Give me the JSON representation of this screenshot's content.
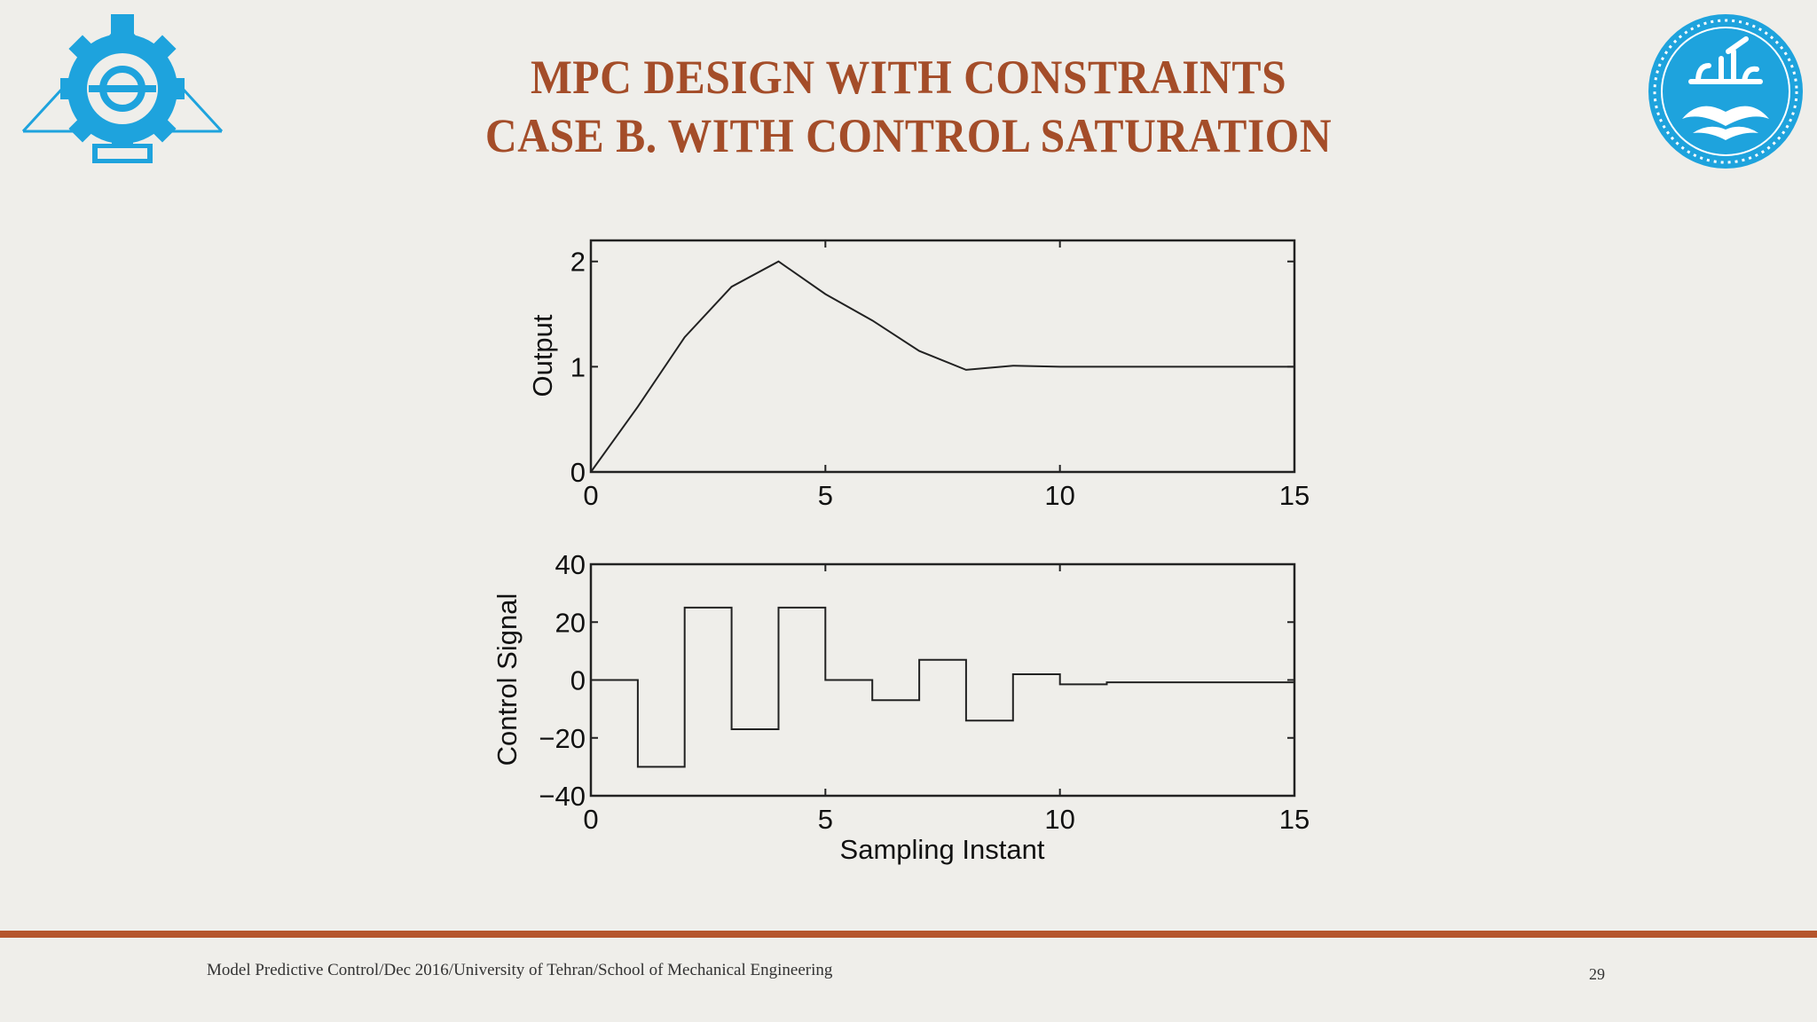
{
  "slide": {
    "title_line1": "MPC DESIGN WITH CONSTRAINTS",
    "title_line2": "CASE B. WITH CONTROL SATURATION",
    "footer": "Model Predictive Control/Dec 2016/University of Tehran/School of Mechanical Engineering",
    "page_number": "29"
  },
  "colors": {
    "title": "#a44d29",
    "accent_line": "#b5552c",
    "logo_blue": "#1ea3dd",
    "background": "#efeeea",
    "plot_line": "#222222"
  },
  "chart_data": [
    {
      "type": "line",
      "title": "",
      "xlabel": "",
      "ylabel": "Output",
      "xlim": [
        0,
        15
      ],
      "ylim": [
        0,
        2.2
      ],
      "xticks": [
        0,
        5,
        10,
        15
      ],
      "yticks": [
        0,
        1,
        2
      ],
      "grid": false,
      "series": [
        {
          "name": "Output",
          "x": [
            0,
            1,
            2,
            3,
            4,
            5,
            6,
            7,
            8,
            9,
            10,
            11,
            12,
            13,
            14,
            15
          ],
          "values": [
            0,
            0.62,
            1.28,
            1.76,
            2.0,
            1.69,
            1.44,
            1.15,
            0.97,
            1.01,
            1.0,
            1.0,
            1.0,
            1.0,
            1.0,
            1.0
          ]
        }
      ]
    },
    {
      "type": "line",
      "step": true,
      "title": "",
      "xlabel": "Sampling Instant",
      "ylabel": "Control Signal",
      "xlim": [
        0,
        15
      ],
      "ylim": [
        -40,
        40
      ],
      "xticks": [
        0,
        5,
        10,
        15
      ],
      "yticks": [
        -40,
        -20,
        0,
        20,
        40
      ],
      "grid": false,
      "series": [
        {
          "name": "Control Signal",
          "x": [
            0,
            1,
            2,
            3,
            4,
            5,
            6,
            7,
            8,
            9,
            10,
            11,
            12,
            13,
            14
          ],
          "values": [
            0,
            -30,
            25,
            -17,
            25,
            0,
            -7,
            7,
            -14,
            2,
            -1.5,
            -0.8,
            -0.8,
            -0.8,
            -0.8
          ]
        }
      ]
    }
  ]
}
